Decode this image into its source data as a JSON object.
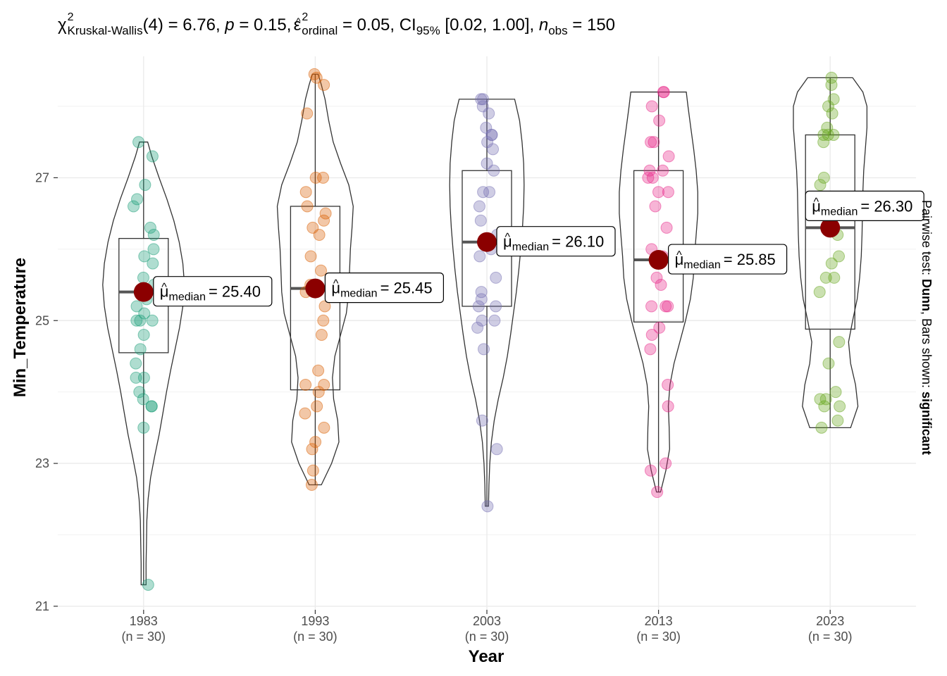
{
  "chart_data": {
    "type": "violin-box-scatter",
    "title_stats": {
      "chi_symbol": "χ",
      "chi_sup": "2",
      "test_sub": "Kruskal-Wallis",
      "df_part": "(4) = 6.76, ",
      "p_symbol": "p",
      "p_part": " = 0.15, ",
      "eps_symbol": "ε",
      "eps_sup": "2",
      "eps_sub": "ordinal",
      "eps_part": " = 0.05, CI",
      "ci_sub": "95%",
      "ci_part": " [0.02, 1.00], ",
      "n_symbol": "n",
      "n_sub": "obs",
      "n_part": " = 150"
    },
    "xlabel": "Year",
    "ylabel": "Min_Temperature",
    "side_caption": {
      "prefix": "Pairwise test: ",
      "test": "Dunn",
      "middle": ", Bars shown: ",
      "bars": "significant"
    },
    "y_range": [
      20.95,
      28.7
    ],
    "y_ticks": [
      21,
      23,
      25,
      27
    ],
    "y_tick_labels": [
      "21",
      "23",
      "25",
      "27"
    ],
    "grid": true,
    "median_label_prefix": "μ",
    "median_label_sub": "median",
    "groups": [
      {
        "category": "1983",
        "n_label": "(n = 30)",
        "color": "#1B9E77",
        "box": {
          "q1": 24.55,
          "median": 25.4,
          "q3": 26.15,
          "whisker_low": 21.3,
          "whisker_high": 27.5
        },
        "median_label": "= 25.40",
        "median_value": 25.4,
        "violin": [
          [
            21.3,
            0.06
          ],
          [
            21.6,
            0.06
          ],
          [
            21.9,
            0.07
          ],
          [
            22.2,
            0.08
          ],
          [
            22.5,
            0.11
          ],
          [
            22.8,
            0.17
          ],
          [
            23.1,
            0.27
          ],
          [
            23.4,
            0.38
          ],
          [
            23.7,
            0.47
          ],
          [
            24.0,
            0.56
          ],
          [
            24.3,
            0.66
          ],
          [
            24.6,
            0.77
          ],
          [
            24.9,
            0.88
          ],
          [
            25.2,
            0.96
          ],
          [
            25.5,
            1.0
          ],
          [
            25.8,
            0.96
          ],
          [
            26.1,
            0.87
          ],
          [
            26.4,
            0.74
          ],
          [
            26.7,
            0.57
          ],
          [
            27.0,
            0.38
          ],
          [
            27.3,
            0.2
          ],
          [
            27.5,
            0.1
          ]
        ],
        "points": [
          27.5,
          27.3,
          26.9,
          26.7,
          26.6,
          26.3,
          26.2,
          26.0,
          25.9,
          25.8,
          25.6,
          25.5,
          25.4,
          25.3,
          25.2,
          25.1,
          25.0,
          25.0,
          25.0,
          24.8,
          24.6,
          24.4,
          24.2,
          24.2,
          24.0,
          23.9,
          23.8,
          23.8,
          23.5,
          21.3
        ]
      },
      {
        "category": "1993",
        "n_label": "(n = 30)",
        "color": "#D95F02",
        "box": {
          "q1": 24.03,
          "median": 25.45,
          "q3": 26.6,
          "whisker_low": 22.7,
          "whisker_high": 28.45
        },
        "median_label": "= 25.45",
        "median_value": 25.45,
        "violin": [
          [
            22.7,
            0.15
          ],
          [
            23.0,
            0.4
          ],
          [
            23.3,
            0.58
          ],
          [
            23.6,
            0.55
          ],
          [
            23.9,
            0.45
          ],
          [
            24.2,
            0.42
          ],
          [
            24.5,
            0.48
          ],
          [
            24.8,
            0.62
          ],
          [
            25.1,
            0.76
          ],
          [
            25.4,
            0.82
          ],
          [
            25.7,
            0.84
          ],
          [
            26.0,
            0.86
          ],
          [
            26.3,
            0.9
          ],
          [
            26.6,
            0.93
          ],
          [
            26.9,
            0.82
          ],
          [
            27.2,
            0.62
          ],
          [
            27.5,
            0.44
          ],
          [
            27.8,
            0.33
          ],
          [
            28.1,
            0.24
          ],
          [
            28.3,
            0.15
          ],
          [
            28.45,
            0.07
          ]
        ],
        "points": [
          28.45,
          28.4,
          28.3,
          27.9,
          27.0,
          27.0,
          26.8,
          26.6,
          26.5,
          26.4,
          26.3,
          26.2,
          25.9,
          25.7,
          25.5,
          25.4,
          25.2,
          25.0,
          24.8,
          24.3,
          24.1,
          24.1,
          24.0,
          23.8,
          23.7,
          23.5,
          23.3,
          23.2,
          22.9,
          22.7
        ]
      },
      {
        "category": "2003",
        "n_label": "(n = 30)",
        "color": "#7570B3",
        "box": {
          "q1": 25.2,
          "median": 26.1,
          "q3": 27.1,
          "whisker_low": 22.4,
          "whisker_high": 28.1
        },
        "median_label": "= 26.10",
        "median_value": 26.1,
        "violin": [
          [
            22.4,
            0.04
          ],
          [
            22.7,
            0.05
          ],
          [
            23.0,
            0.07
          ],
          [
            23.3,
            0.11
          ],
          [
            23.6,
            0.18
          ],
          [
            23.9,
            0.28
          ],
          [
            24.2,
            0.4
          ],
          [
            24.5,
            0.5
          ],
          [
            24.8,
            0.58
          ],
          [
            25.1,
            0.65
          ],
          [
            25.4,
            0.72
          ],
          [
            25.7,
            0.78
          ],
          [
            26.0,
            0.83
          ],
          [
            26.3,
            0.87
          ],
          [
            26.6,
            0.9
          ],
          [
            26.9,
            0.91
          ],
          [
            27.2,
            0.9
          ],
          [
            27.5,
            0.86
          ],
          [
            27.8,
            0.8
          ],
          [
            28.0,
            0.72
          ],
          [
            28.1,
            0.68
          ]
        ],
        "points": [
          28.1,
          28.1,
          28.0,
          27.9,
          27.7,
          27.6,
          27.5,
          27.4,
          27.2,
          27.1,
          26.8,
          26.6,
          26.4,
          26.2,
          26.0,
          25.9,
          25.6,
          25.3,
          25.2,
          25.2,
          25.0,
          25.0,
          24.9,
          24.6,
          23.6,
          23.2,
          22.4,
          26.8,
          25.4,
          27.6
        ]
      },
      {
        "category": "2013",
        "n_label": "(n = 30)",
        "color": "#E7298A",
        "box": {
          "q1": 24.98,
          "median": 25.85,
          "q3": 27.1,
          "whisker_low": 22.6,
          "whisker_high": 28.2
        },
        "median_label": "= 25.85",
        "median_value": 25.85,
        "violin": [
          [
            22.6,
            0.05
          ],
          [
            22.9,
            0.18
          ],
          [
            23.2,
            0.27
          ],
          [
            23.5,
            0.26
          ],
          [
            23.8,
            0.24
          ],
          [
            24.1,
            0.28
          ],
          [
            24.4,
            0.38
          ],
          [
            24.7,
            0.52
          ],
          [
            25.0,
            0.66
          ],
          [
            25.3,
            0.78
          ],
          [
            25.6,
            0.85
          ],
          [
            25.9,
            0.88
          ],
          [
            26.2,
            0.92
          ],
          [
            26.5,
            0.96
          ],
          [
            26.8,
            0.96
          ],
          [
            27.1,
            0.92
          ],
          [
            27.4,
            0.86
          ],
          [
            27.7,
            0.79
          ],
          [
            28.0,
            0.72
          ],
          [
            28.2,
            0.68
          ]
        ],
        "points": [
          28.2,
          28.2,
          28.0,
          27.8,
          27.5,
          27.5,
          27.1,
          27.1,
          27.0,
          27.0,
          26.8,
          26.8,
          26.6,
          26.3,
          26.0,
          25.9,
          25.6,
          25.5,
          25.2,
          25.2,
          24.9,
          24.8,
          24.6,
          24.1,
          23.8,
          23.0,
          22.9,
          22.6,
          27.3,
          25.2
        ]
      },
      {
        "category": "2023",
        "n_label": "(n = 30)",
        "color": "#66A61E",
        "box": {
          "q1": 24.88,
          "median": 26.3,
          "q3": 27.6,
          "whisker_low": 23.5,
          "whisker_high": 28.4
        },
        "median_label": "= 26.30",
        "median_value": 26.3,
        "violin": [
          [
            23.5,
            0.5
          ],
          [
            23.8,
            0.68
          ],
          [
            24.1,
            0.62
          ],
          [
            24.4,
            0.5
          ],
          [
            24.7,
            0.45
          ],
          [
            25.0,
            0.55
          ],
          [
            25.3,
            0.66
          ],
          [
            25.6,
            0.72
          ],
          [
            25.9,
            0.76
          ],
          [
            26.2,
            0.78
          ],
          [
            26.5,
            0.79
          ],
          [
            26.8,
            0.8
          ],
          [
            27.1,
            0.82
          ],
          [
            27.4,
            0.86
          ],
          [
            27.7,
            0.9
          ],
          [
            28.0,
            0.9
          ],
          [
            28.2,
            0.8
          ],
          [
            28.4,
            0.55
          ]
        ],
        "points": [
          28.4,
          28.3,
          28.1,
          28.0,
          27.9,
          27.7,
          27.6,
          27.6,
          27.6,
          27.5,
          27.0,
          26.9,
          26.6,
          26.5,
          26.3,
          26.2,
          25.9,
          25.8,
          25.6,
          25.6,
          25.4,
          24.7,
          24.4,
          24.0,
          23.9,
          23.9,
          23.8,
          23.8,
          23.6,
          23.5
        ]
      }
    ]
  }
}
